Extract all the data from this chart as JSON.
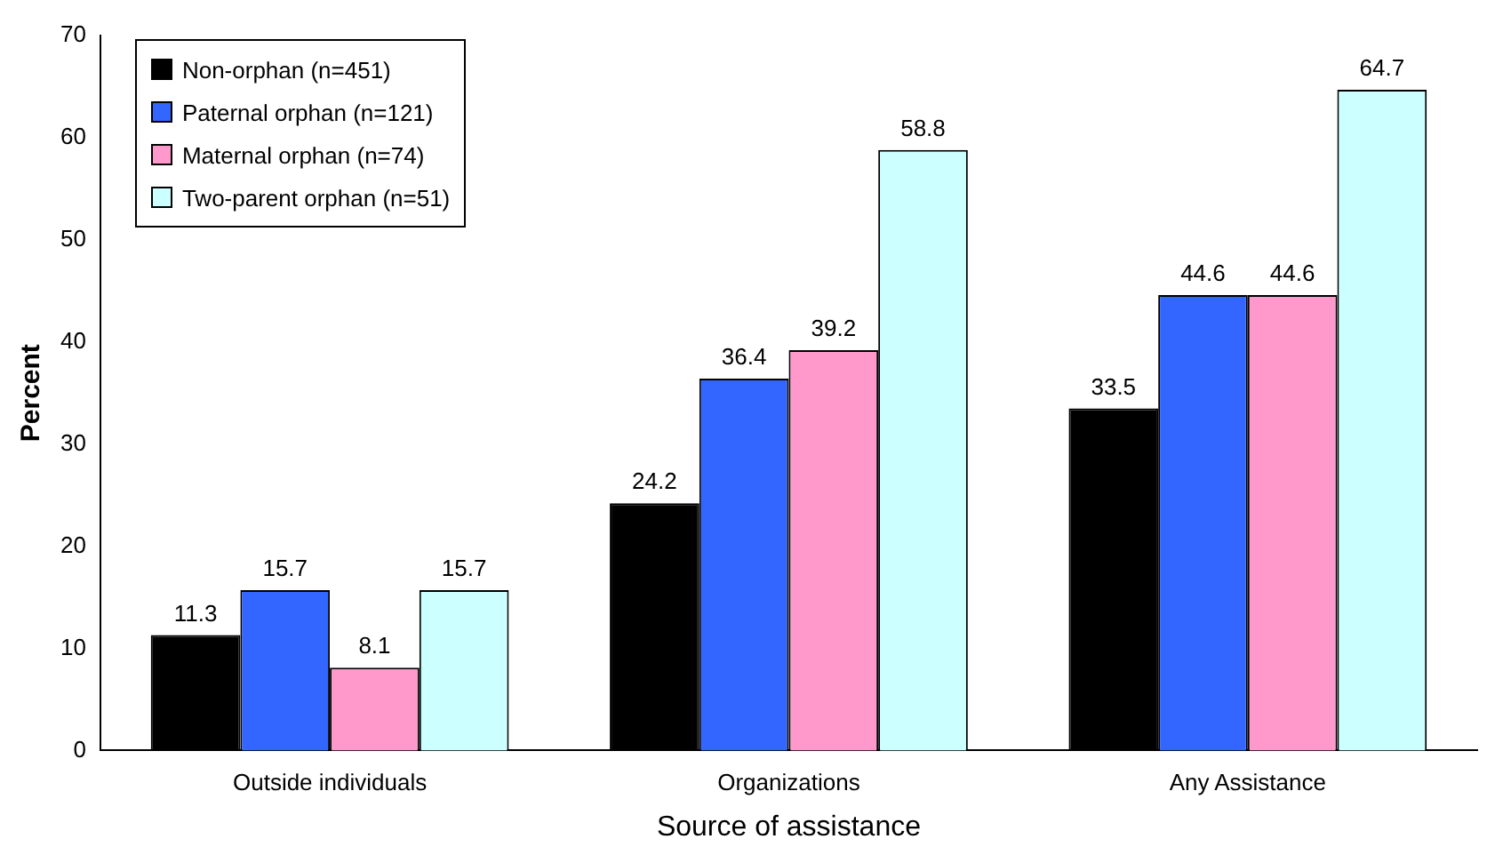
{
  "chart_data": {
    "type": "bar",
    "xlabel": "Source of assistance",
    "ylabel": "Percent",
    "categories": [
      "Outside individuals",
      "Organizations",
      "Any Assistance"
    ],
    "series": [
      {
        "name": "Non-orphan (n=451)",
        "color": "#000000",
        "values": [
          11.3,
          24.2,
          33.5
        ]
      },
      {
        "name": "Paternal orphan (n=121)",
        "color": "#3366ff",
        "values": [
          15.7,
          36.4,
          44.6
        ]
      },
      {
        "name": "Maternal orphan (n=74)",
        "color": "#ff99cc",
        "values": [
          8.1,
          39.2,
          44.6
        ]
      },
      {
        "name": "Two-parent orphan (n=51)",
        "color": "#ccffff",
        "values": [
          15.7,
          58.8,
          64.7
        ]
      }
    ],
    "ylim": [
      0,
      70
    ],
    "yticks": [
      0,
      10,
      20,
      30,
      40,
      50,
      60,
      70
    ],
    "grid": false,
    "legend": "top left",
    "data_labels": true
  }
}
